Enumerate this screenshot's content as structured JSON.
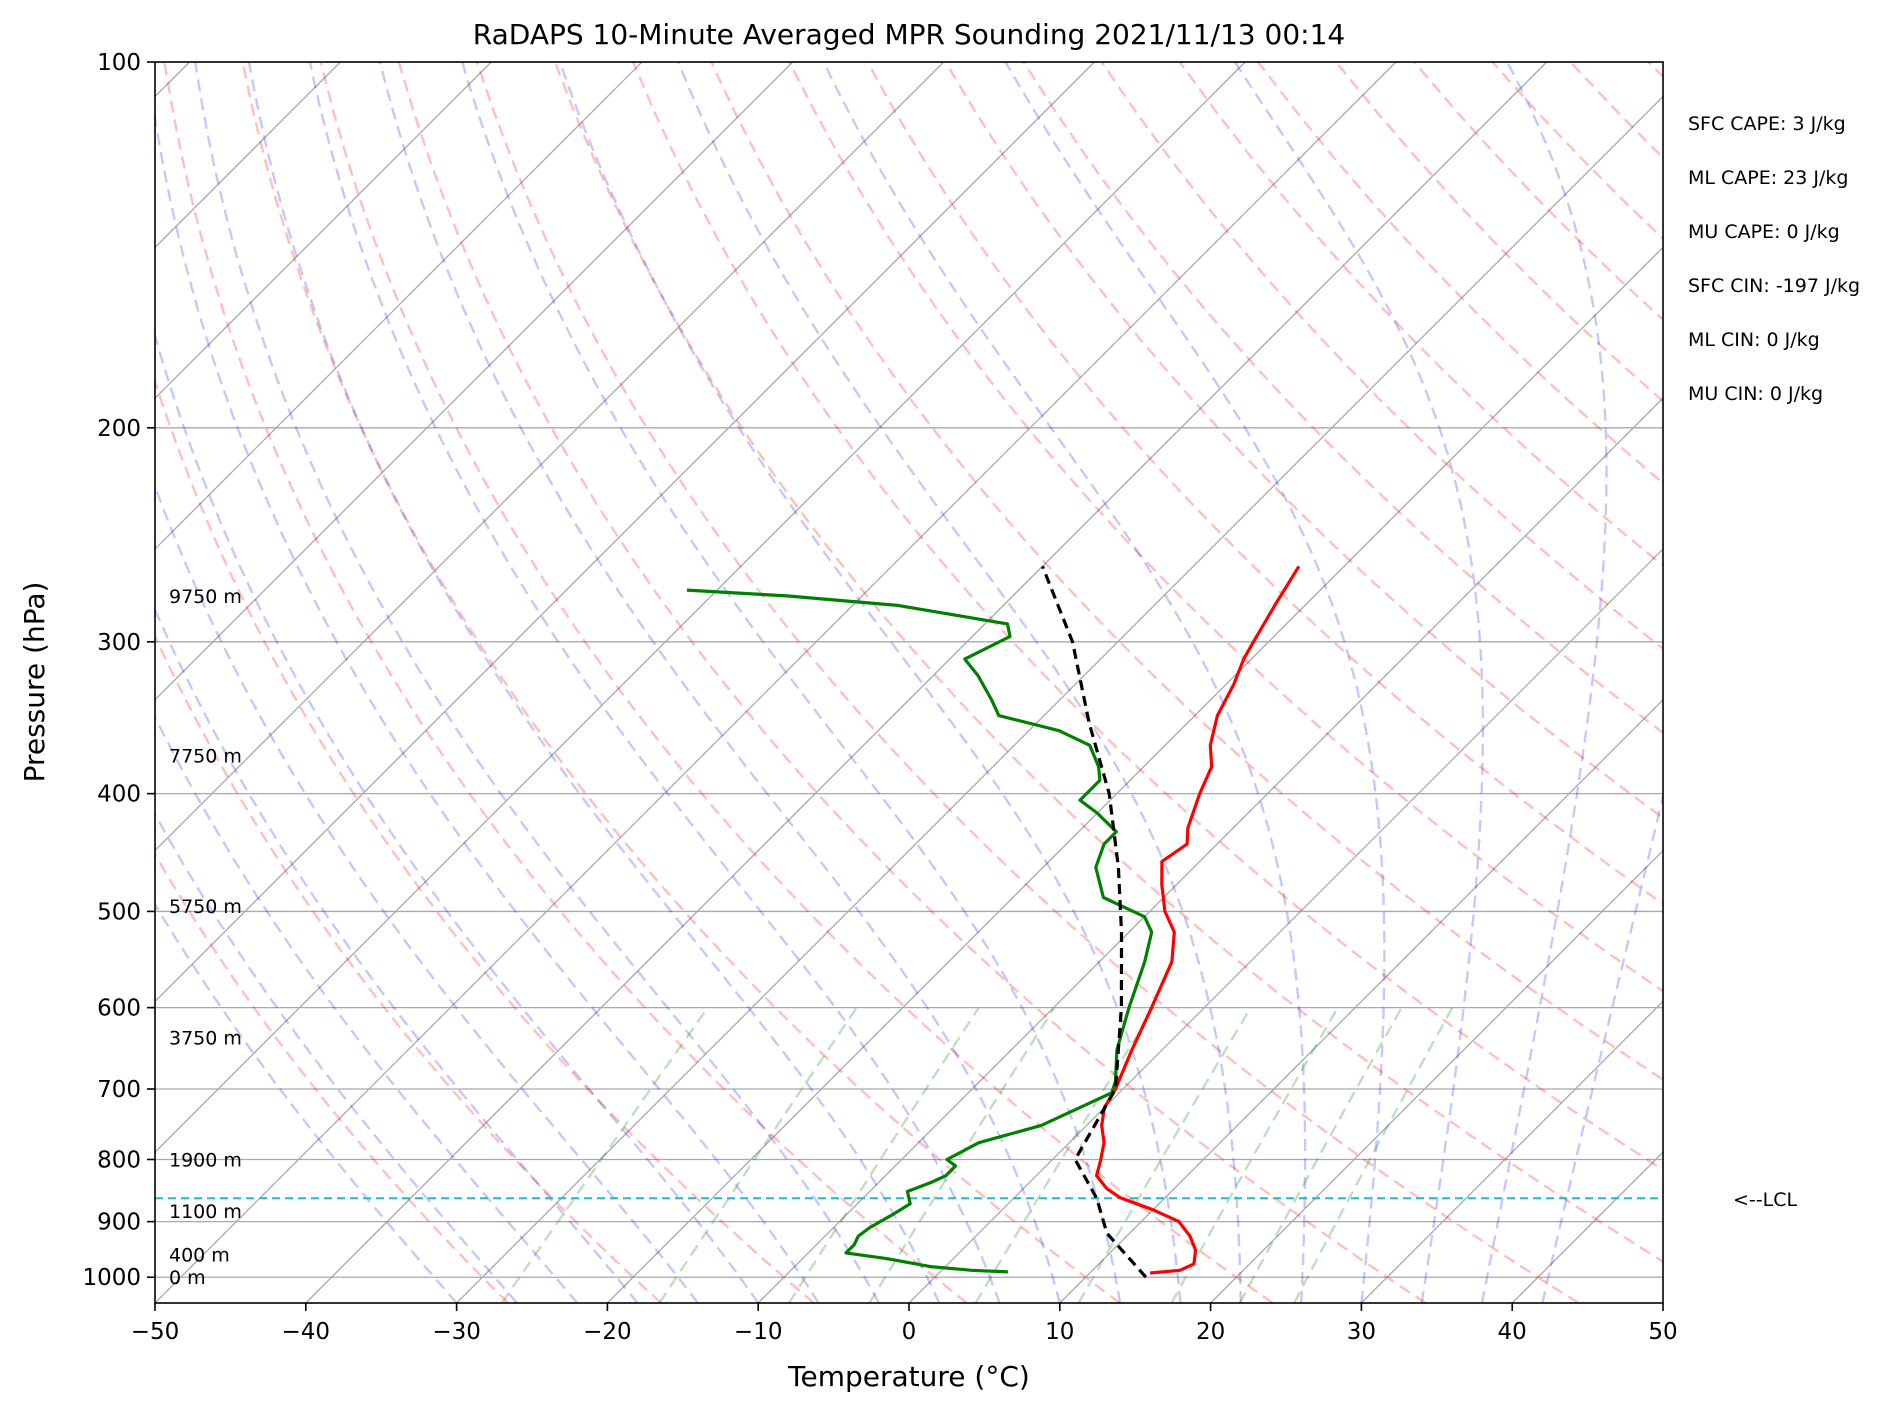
{
  "chart_data": {
    "type": "line",
    "title": "RaDAPS 10-Minute Averaged MPR Sounding 2021/11/13 00:14",
    "xlabel": "Temperature (°C)",
    "ylabel": "Pressure (hPa)",
    "xlim": [
      -50,
      50
    ],
    "ylim": [
      1050,
      100
    ],
    "y_scale": "log",
    "skew": true,
    "grid": true,
    "x_ticks": [
      -50,
      -40,
      -30,
      -20,
      -10,
      0,
      10,
      20,
      30,
      40,
      50
    ],
    "y_ticks": [
      100,
      200,
      300,
      400,
      500,
      600,
      700,
      800,
      900,
      1000
    ],
    "height_labels": [
      {
        "text": "9750 m",
        "p": 275
      },
      {
        "text": "7750 m",
        "p": 372
      },
      {
        "text": "5750 m",
        "p": 495
      },
      {
        "text": "3750 m",
        "p": 635
      },
      {
        "text": "1900 m",
        "p": 800
      },
      {
        "text": "1100 m",
        "p": 882
      },
      {
        "text": "400 m",
        "p": 958
      },
      {
        "text": "0 m",
        "p": 1000
      }
    ],
    "indices": [
      "SFC CAPE: 3 J/kg",
      "ML CAPE: 23 J/kg",
      "MU CAPE: 0 J/kg",
      "SFC CIN: -197 J/kg",
      "ML CIN: 0 J/kg",
      "MU CIN: 0 J/kg"
    ],
    "lcl": {
      "label": "<--LCL",
      "p": 861,
      "color": "#17becf"
    },
    "series": [
      {
        "role": "temperature",
        "color": "#ff0000",
        "points": [
          [
            14.0,
            992
          ],
          [
            15.8,
            987
          ],
          [
            16.3,
            975
          ],
          [
            15.5,
            950
          ],
          [
            14.2,
            925
          ],
          [
            12.5,
            900
          ],
          [
            10.0,
            880
          ],
          [
            7.0,
            860
          ],
          [
            5.5,
            845
          ],
          [
            4.0,
            825
          ],
          [
            3.2,
            800
          ],
          [
            2.3,
            775
          ],
          [
            1.0,
            750
          ],
          [
            0.0,
            725
          ],
          [
            -0.5,
            700
          ],
          [
            -2.0,
            650
          ],
          [
            -3.5,
            600
          ],
          [
            -5.2,
            550
          ],
          [
            -7.0,
            520
          ],
          [
            -9.0,
            500
          ],
          [
            -11.0,
            475
          ],
          [
            -12.5,
            455
          ],
          [
            -12.0,
            440
          ],
          [
            -13.0,
            427
          ],
          [
            -14.5,
            400
          ],
          [
            -15.5,
            380
          ],
          [
            -17.0,
            365
          ],
          [
            -18.5,
            345
          ],
          [
            -19.5,
            325
          ],
          [
            -20.5,
            310
          ],
          [
            -21.0,
            300
          ],
          [
            -22.0,
            280
          ],
          [
            -23.0,
            260
          ]
        ]
      },
      {
        "role": "dewpoint",
        "color": "#008000",
        "points": [
          [
            4.5,
            990
          ],
          [
            2.0,
            987
          ],
          [
            -1.0,
            980
          ],
          [
            -4.5,
            965
          ],
          [
            -6.0,
            960
          ],
          [
            -7.5,
            955
          ],
          [
            -7.5,
            940
          ],
          [
            -7.8,
            925
          ],
          [
            -7.6,
            910
          ],
          [
            -7.0,
            890
          ],
          [
            -6.5,
            870
          ],
          [
            -7.5,
            850
          ],
          [
            -6.5,
            835
          ],
          [
            -6.0,
            825
          ],
          [
            -6.0,
            810
          ],
          [
            -7.0,
            800
          ],
          [
            -6.0,
            775
          ],
          [
            -3.0,
            750
          ],
          [
            -0.5,
            705
          ],
          [
            -1.0,
            690
          ],
          [
            -3.0,
            650
          ],
          [
            -5.0,
            600
          ],
          [
            -7.0,
            550
          ],
          [
            -8.5,
            520
          ],
          [
            -10.0,
            505
          ],
          [
            -14.0,
            487
          ],
          [
            -16.5,
            460
          ],
          [
            -17.5,
            440
          ],
          [
            -17.5,
            430
          ],
          [
            -20.0,
            415
          ],
          [
            -22.0,
            405
          ],
          [
            -22.0,
            390
          ],
          [
            -23.0,
            380
          ],
          [
            -25.0,
            365
          ],
          [
            -28.0,
            355
          ],
          [
            -33.0,
            345
          ],
          [
            -34.5,
            335
          ],
          [
            -37.0,
            320
          ],
          [
            -39.0,
            310
          ],
          [
            -37.5,
            297
          ],
          [
            -38.5,
            290
          ],
          [
            -47.0,
            280
          ],
          [
            -55.0,
            275
          ],
          [
            -62.0,
            272
          ]
        ]
      },
      {
        "role": "parcel",
        "color": "#000000",
        "dashed": true,
        "points": [
          [
            14.0,
            1000
          ],
          [
            8.5,
            920
          ],
          [
            5.5,
            861
          ],
          [
            1.5,
            800
          ],
          [
            -0.5,
            700
          ],
          [
            -5.5,
            600
          ],
          [
            -10.5,
            520
          ],
          [
            -15.0,
            460
          ],
          [
            -20.5,
            400
          ],
          [
            -26.5,
            350
          ],
          [
            -33.0,
            300
          ],
          [
            -40.0,
            260
          ]
        ]
      }
    ],
    "background": {
      "dry_adiabat_color": "#ff0000",
      "moist_adiabat_color": "#0000ff",
      "mixing_ratio_color": "#008000",
      "isotherm_color": "#808080"
    }
  }
}
